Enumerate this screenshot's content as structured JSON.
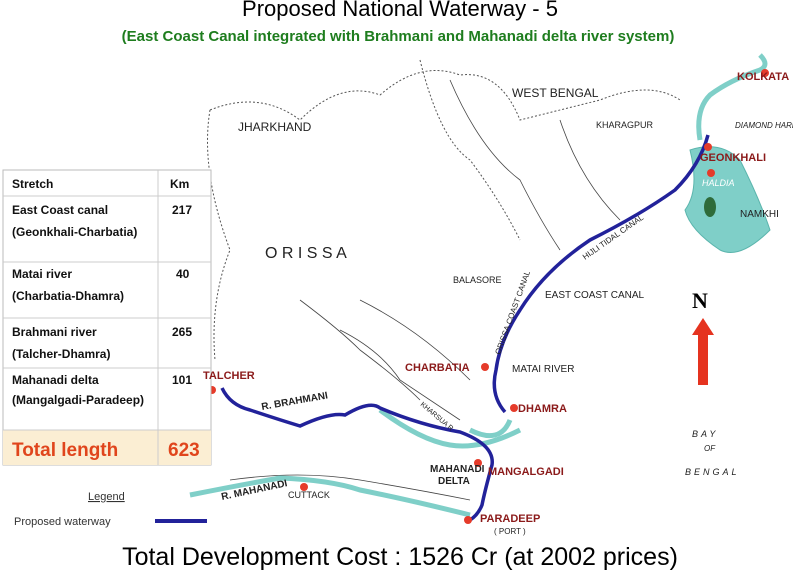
{
  "header": {
    "title": "Proposed National Waterway - 5",
    "subtitle": "(East Coast Canal integrated with Brahmani and Mahanadi delta river system)"
  },
  "table": {
    "columns": [
      "Stretch",
      "Km"
    ],
    "rows": [
      {
        "name": "East Coast canal",
        "route": "(Geonkhali-Charbatia)",
        "km": 217
      },
      {
        "name": "Matai river",
        "route": "(Charbatia-Dhamra)",
        "km": 40
      },
      {
        "name": "Brahmani river",
        "route": "(Talcher-Dhamra)",
        "km": 265
      },
      {
        "name": "Mahanadi delta",
        "route": "(Mangalgadi-Paradeep)",
        "km": 101
      }
    ],
    "total": {
      "label": "Total length",
      "km": 623
    }
  },
  "legend": {
    "title": "Legend",
    "waterway": "Proposed waterway"
  },
  "map_labels": {
    "west_bengal": "WEST BENGAL",
    "jharkhand": "JHARKHAND",
    "orissa": "O R I S S A",
    "kolkata": "KOLKATA",
    "diamond_harbour": "DIAMOND HARBOUR",
    "kharagpur": "KHARAGPUR",
    "geonkhali": "GEONKHALI",
    "haldia": "HALDIA",
    "namkhi": "NAMKHI",
    "hijli": "HIJLI TIDAL CANAL",
    "balasore": "BALASORE",
    "orissa_coast_canal": "ORISSA COAST CANAL",
    "east_coast_canal": "EAST COAST CANAL",
    "north": "N",
    "charbatia": "CHARBATIA",
    "matai_river": "MATAI RIVER",
    "dhamra": "DHAMRA",
    "talcher": "TALCHER",
    "r_brahmani": "R. BRAHMANI",
    "kharsua": "KHARSUA R",
    "mangalgadi": "MANGALGADI",
    "mahanadi_delta_1": "MAHANADI",
    "mahanadi_delta_2": "DELTA",
    "r_mahanadi": "R. MAHANADI",
    "cuttack": "CUTTACK",
    "paradeep": "PARADEEP",
    "port": "( PORT )",
    "bay_1": "BAY",
    "bay_2": "OF",
    "bay_3": "BENGAL"
  },
  "footer": "Total Development Cost : 1526 Cr (at 2002 prices)"
}
